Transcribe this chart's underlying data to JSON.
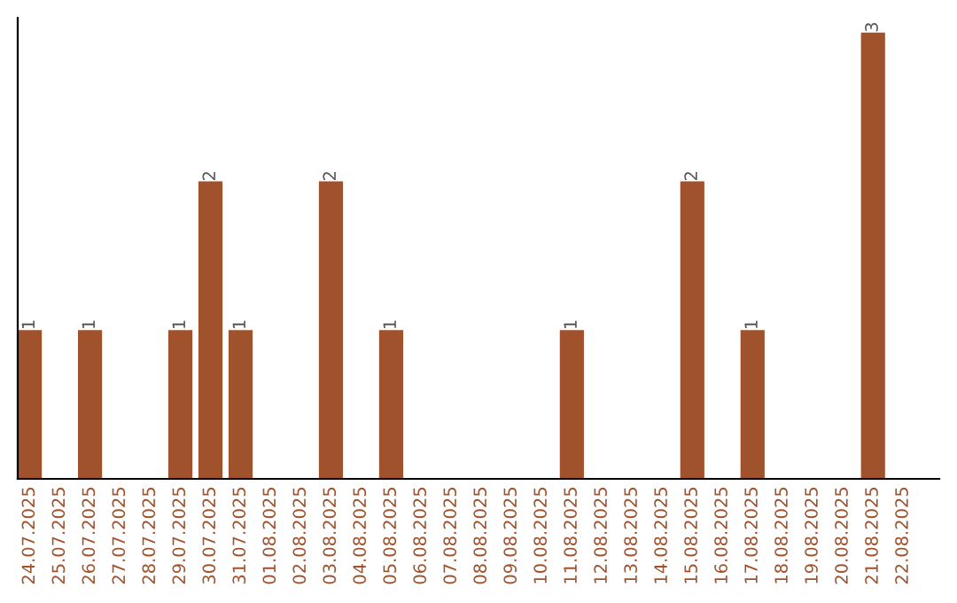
{
  "chart_data": {
    "type": "bar",
    "categories": [
      "24.07.2025",
      "25.07.2025",
      "26.07.2025",
      "27.07.2025",
      "28.07.2025",
      "29.07.2025",
      "30.07.2025",
      "31.07.2025",
      "01.08.2025",
      "02.08.2025",
      "03.08.2025",
      "04.08.2025",
      "05.08.2025",
      "06.08.2025",
      "07.08.2025",
      "08.08.2025",
      "09.08.2025",
      "10.08.2025",
      "11.08.2025",
      "12.08.2025",
      "13.08.2025",
      "14.08.2025",
      "15.08.2025",
      "16.08.2025",
      "17.08.2025",
      "18.08.2025",
      "19.08.2025",
      "20.08.2025",
      "21.08.2025",
      "22.08.2025"
    ],
    "values": [
      1,
      0,
      1,
      0,
      0,
      1,
      2,
      1,
      0,
      0,
      2,
      0,
      1,
      0,
      0,
      0,
      0,
      0,
      1,
      0,
      0,
      0,
      2,
      0,
      1,
      0,
      0,
      0,
      3,
      0
    ],
    "value_labels": [
      "1",
      null,
      "1",
      null,
      null,
      "1",
      "2",
      "1",
      null,
      null,
      "2",
      null,
      "1",
      null,
      null,
      null,
      null,
      null,
      "1",
      null,
      null,
      null,
      "2",
      null,
      "1",
      null,
      null,
      null,
      "3",
      null
    ],
    "color": "#a0522d",
    "ylim": [
      0,
      3.1
    ],
    "tick_labels": "x",
    "grid": false,
    "legend": false
  }
}
